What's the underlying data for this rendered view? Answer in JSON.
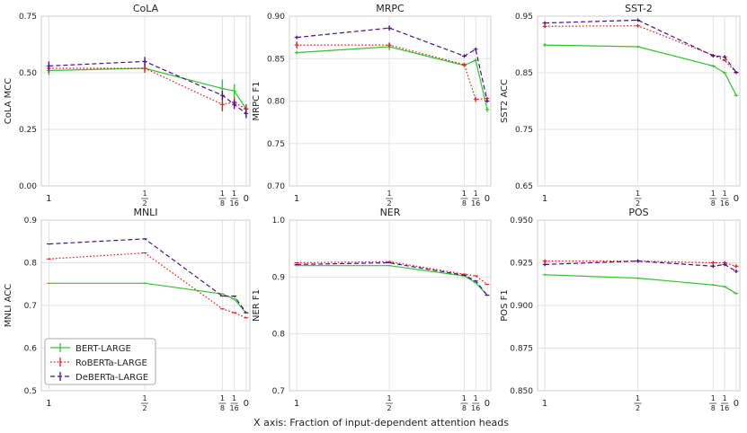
{
  "figure": {
    "xlabel": "X axis: Fraction of input-dependent attention heads",
    "legend": [
      {
        "name": "BERT-LARGE",
        "color": "#33c233",
        "dash": "solid"
      },
      {
        "name": "RoBERTa-LARGE",
        "color": "#e31a1c",
        "dash": "dotted"
      },
      {
        "name": "DeBERTa-LARGE",
        "color": "#4b0e8c",
        "dash": "dashed"
      }
    ]
  },
  "chart_data": [
    {
      "type": "line",
      "title": "CoLA",
      "ylabel": "CoLA MCC",
      "ylim": [
        0.0,
        0.75
      ],
      "yticks": [
        "0.00",
        "0.25",
        "0.50",
        "0.75"
      ],
      "x": [
        1,
        0.5,
        0.125,
        0.0625,
        0
      ],
      "xtick_labels": [
        "1",
        "1/2",
        "1/8",
        "1/16",
        "0"
      ],
      "series": [
        {
          "name": "BERT-LARGE",
          "values": [
            0.51,
            0.52,
            0.43,
            0.42,
            0.34
          ],
          "err": [
            0.02,
            0.01,
            0.04,
            0.03,
            0.02
          ]
        },
        {
          "name": "RoBERTa-LARGE",
          "values": [
            0.52,
            0.52,
            0.36,
            0.37,
            0.34
          ],
          "err": [
            0.02,
            0.02,
            0.03,
            0.02,
            0.02
          ]
        },
        {
          "name": "DeBERTa-LARGE",
          "values": [
            0.53,
            0.55,
            0.4,
            0.36,
            0.32
          ],
          "err": [
            0.02,
            0.02,
            0.02,
            0.02,
            0.02
          ]
        }
      ]
    },
    {
      "type": "line",
      "title": "MRPC",
      "ylabel": "MRPC F1",
      "ylim": [
        0.7,
        0.9
      ],
      "yticks": [
        "0.70",
        "0.75",
        "0.80",
        "0.85",
        "0.90"
      ],
      "x": [
        1,
        0.5,
        0.125,
        0.0625,
        0
      ],
      "xtick_labels": [
        "1",
        "1/2",
        "1/8",
        "1/16",
        "0"
      ],
      "series": [
        {
          "name": "BERT-LARGE",
          "values": [
            0.857,
            0.864,
            0.842,
            0.848,
            0.79
          ],
          "err": [
            0.002,
            0.004,
            0.002,
            0.002,
            0.003
          ]
        },
        {
          "name": "RoBERTa-LARGE",
          "values": [
            0.866,
            0.866,
            0.843,
            0.802,
            0.803
          ],
          "err": [
            0.004,
            0.003,
            0.002,
            0.003,
            0.002
          ]
        },
        {
          "name": "DeBERTa-LARGE",
          "values": [
            0.875,
            0.886,
            0.853,
            0.861,
            0.8
          ],
          "err": [
            0.002,
            0.003,
            0.002,
            0.002,
            0.002
          ]
        }
      ]
    },
    {
      "type": "line",
      "title": "SST-2",
      "ylabel": "SST2 ACC",
      "ylim": [
        0.65,
        0.95
      ],
      "yticks": [
        "0.65",
        "0.75",
        "0.85",
        "0.95"
      ],
      "x": [
        1,
        0.5,
        0.125,
        0.0625,
        0
      ],
      "xtick_labels": [
        "1",
        "1/2",
        "1/8",
        "1/16",
        "0"
      ],
      "series": [
        {
          "name": "BERT-LARGE",
          "values": [
            0.899,
            0.896,
            0.862,
            0.85,
            0.81
          ],
          "err": [
            0.003,
            0.002,
            0.002,
            0.002,
            0.002
          ]
        },
        {
          "name": "RoBERTa-LARGE",
          "values": [
            0.932,
            0.933,
            0.881,
            0.872,
            0.85
          ],
          "err": [
            0.003,
            0.003,
            0.002,
            0.002,
            0.002
          ]
        },
        {
          "name": "DeBERTa-LARGE",
          "values": [
            0.938,
            0.943,
            0.88,
            0.878,
            0.851
          ],
          "err": [
            0.003,
            0.003,
            0.003,
            0.003,
            0.002
          ]
        }
      ]
    },
    {
      "type": "line",
      "title": "MNLI",
      "ylabel": "MNLI ACC",
      "ylim": [
        0.5,
        0.9
      ],
      "yticks": [
        "0.5",
        "0.6",
        "0.7",
        "0.8",
        "0.9"
      ],
      "x": [
        1,
        0.5,
        0.125,
        0.0625,
        0
      ],
      "xtick_labels": [
        "1",
        "1/2",
        "1/8",
        "1/16",
        "0"
      ],
      "series": [
        {
          "name": "BERT-LARGE",
          "values": [
            0.752,
            0.752,
            0.727,
            0.715,
            0.682
          ],
          "err": [
            0.001,
            0.002,
            0.001,
            0.001,
            0.001
          ]
        },
        {
          "name": "RoBERTa-LARGE",
          "values": [
            0.809,
            0.823,
            0.692,
            0.683,
            0.671
          ],
          "err": [
            0.001,
            0.001,
            0.001,
            0.001,
            0.001
          ]
        },
        {
          "name": "DeBERTa-LARGE",
          "values": [
            0.844,
            0.856,
            0.722,
            0.722,
            0.683
          ],
          "err": [
            0.001,
            0.001,
            0.001,
            0.001,
            0.001
          ]
        }
      ]
    },
    {
      "type": "line",
      "title": "NER",
      "ylabel": "NER F1",
      "ylim": [
        0.7,
        1.0
      ],
      "yticks": [
        "0.7",
        "0.8",
        "0.9",
        "1.0"
      ],
      "x": [
        1,
        0.5,
        0.125,
        0.0625,
        0
      ],
      "xtick_labels": [
        "1",
        "1/2",
        "1/8",
        "1/16",
        "0"
      ],
      "series": [
        {
          "name": "BERT-LARGE",
          "values": [
            0.92,
            0.92,
            0.902,
            0.89,
            0.868
          ],
          "err": [
            0.001,
            0.001,
            0.001,
            0.001,
            0.001
          ]
        },
        {
          "name": "RoBERTa-LARGE",
          "values": [
            0.925,
            0.927,
            0.905,
            0.902,
            0.887
          ],
          "err": [
            0.001,
            0.001,
            0.001,
            0.001,
            0.001
          ]
        },
        {
          "name": "DeBERTa-LARGE",
          "values": [
            0.922,
            0.925,
            0.903,
            0.893,
            0.868
          ],
          "err": [
            0.001,
            0.001,
            0.001,
            0.001,
            0.001
          ]
        }
      ]
    },
    {
      "type": "line",
      "title": "POS",
      "ylabel": "POS F1",
      "ylim": [
        0.85,
        0.95
      ],
      "yticks": [
        "0.850",
        "0.875",
        "0.900",
        "0.925",
        "0.950"
      ],
      "x": [
        1,
        0.5,
        0.125,
        0.0625,
        0
      ],
      "xtick_labels": [
        "1",
        "1/2",
        "1/8",
        "1/16",
        "0"
      ],
      "series": [
        {
          "name": "BERT-LARGE",
          "values": [
            0.918,
            0.916,
            0.912,
            0.911,
            0.907
          ],
          "err": [
            0.0005,
            0.0005,
            0.0005,
            0.0005,
            0.0005
          ]
        },
        {
          "name": "RoBERTa-LARGE",
          "values": [
            0.926,
            0.926,
            0.925,
            0.925,
            0.923
          ],
          "err": [
            0.001,
            0.001,
            0.001,
            0.001,
            0.001
          ]
        },
        {
          "name": "DeBERTa-LARGE",
          "values": [
            0.924,
            0.926,
            0.923,
            0.924,
            0.92
          ],
          "err": [
            0.001,
            0.001,
            0.001,
            0.001,
            0.001
          ]
        }
      ]
    }
  ]
}
